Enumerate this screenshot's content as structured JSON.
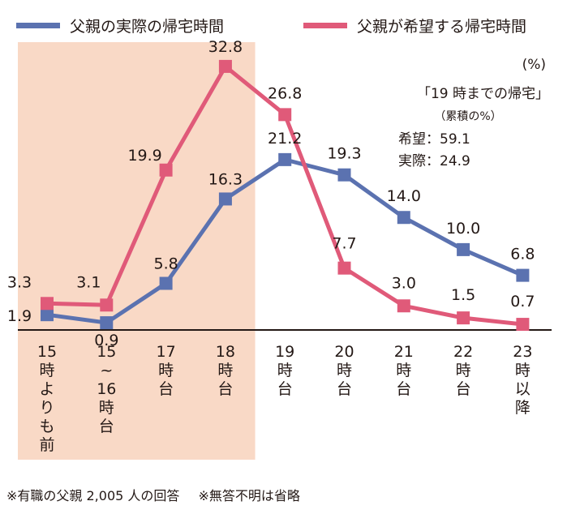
{
  "colors": {
    "actual": "#5B72B0",
    "hope": "#E05A79",
    "highlight": "#F9D9C6",
    "axis": "#231815"
  },
  "legend": {
    "actual": "父親の実際の帰宅時間",
    "hope": "父親が希望する帰宅時間"
  },
  "note": {
    "unit": "(%)",
    "title": "「19 時までの帰宅」",
    "subtitle": "（累積の%）",
    "hope": "希望：59.1",
    "actual": "実際：24.9"
  },
  "footer": {
    "note1": "※有職の父親 2,005 人の回答",
    "note2": "※無答不明は省略"
  },
  "chart_data": {
    "type": "line",
    "title": "",
    "xlabel": "",
    "ylabel": "%",
    "ylim": [
      0,
      34
    ],
    "highlight_categories": [
      "15時よりも前",
      "15~16時台",
      "17時台",
      "18時台"
    ],
    "categories": [
      "15時よりも前",
      "15~16時台",
      "17時台",
      "18時台",
      "19時台",
      "20時台",
      "21時台",
      "22時台",
      "23時以降"
    ],
    "tick_labels": [
      [
        "15",
        "時",
        "よ",
        "り",
        "も",
        "前"
      ],
      [
        "15",
        "~",
        "16",
        "時",
        "台"
      ],
      [
        "17",
        "時",
        "台"
      ],
      [
        "18",
        "時",
        "台"
      ],
      [
        "19",
        "時",
        "台"
      ],
      [
        "20",
        "時",
        "台"
      ],
      [
        "21",
        "時",
        "台"
      ],
      [
        "22",
        "時",
        "台"
      ],
      [
        "23",
        "時",
        "以",
        "降"
      ]
    ],
    "series": [
      {
        "name": "父親の実際の帰宅時間",
        "key": "actual",
        "values": [
          1.9,
          0.9,
          5.8,
          16.3,
          21.2,
          19.3,
          14.0,
          10.0,
          6.8
        ],
        "labels": [
          "1.9",
          "0.9",
          "5.8",
          "16.3",
          "21.2",
          "19.3",
          "14.0",
          "10.0",
          "6.8"
        ]
      },
      {
        "name": "父親が希望する帰宅時間",
        "key": "hope",
        "values": [
          3.3,
          3.1,
          19.9,
          32.8,
          26.8,
          7.7,
          3.0,
          1.5,
          0.7
        ],
        "labels": [
          "3.3",
          "3.1",
          "19.9",
          "32.8",
          "26.8",
          "7.7",
          "3.0",
          "1.5",
          "0.7"
        ]
      }
    ]
  }
}
